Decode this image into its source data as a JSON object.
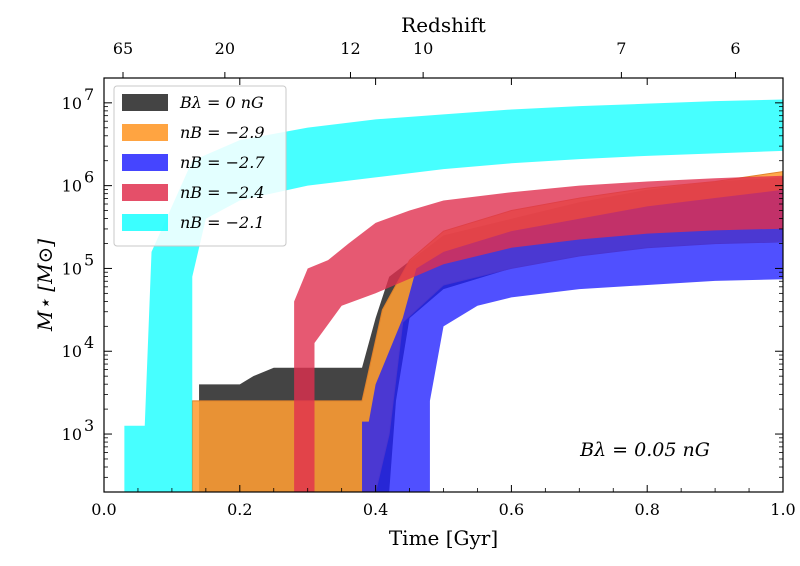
{
  "chart_data": {
    "type": "area",
    "title": "",
    "xlabel": "Time [Gyr]",
    "ylabel": "M⋆ [M⊙]",
    "top_axis_label": "Redshift",
    "xlim": [
      0.0,
      1.0
    ],
    "ylim_log10": [
      2.3,
      7.3
    ],
    "x_ticks": [
      "0.0",
      "0.2",
      "0.4",
      "0.6",
      "0.8",
      "1.0"
    ],
    "x_tick_values": [
      0.0,
      0.2,
      0.4,
      0.6,
      0.8,
      1.0
    ],
    "y_ticks": [
      "10",
      "10",
      "10",
      "10",
      "10"
    ],
    "y_tick_exponents": [
      "3",
      "4",
      "5",
      "6",
      "7"
    ],
    "y_tick_values_log10": [
      3,
      4,
      5,
      6,
      7
    ],
    "redshift_ticks": [
      "65",
      "20",
      "12",
      "10",
      "7",
      "6"
    ],
    "redshift_tick_times": [
      0.028,
      0.178,
      0.363,
      0.47,
      0.762,
      0.93
    ],
    "annotation": "Bλ = 0.05 nG",
    "legend_position": "top-left",
    "series": [
      {
        "name": "Bλ = 0 nG",
        "color": "#444444",
        "opacity": 1.0,
        "lower": [
          [
            0.14,
            2.3
          ],
          [
            0.42,
            2.3
          ],
          [
            0.43,
            3.4
          ],
          [
            0.45,
            4.4
          ],
          [
            0.5,
            4.75
          ],
          [
            0.6,
            5.0
          ],
          [
            0.7,
            5.15
          ],
          [
            0.8,
            5.25
          ],
          [
            0.9,
            5.3
          ],
          [
            1.0,
            5.33
          ]
        ],
        "upper": [
          [
            0.14,
            3.6
          ],
          [
            0.2,
            3.6
          ],
          [
            0.22,
            3.7
          ],
          [
            0.25,
            3.8
          ],
          [
            0.3,
            3.8
          ],
          [
            0.38,
            3.8
          ],
          [
            0.4,
            4.4
          ],
          [
            0.42,
            4.9
          ],
          [
            0.5,
            5.4
          ],
          [
            0.6,
            5.6
          ],
          [
            0.7,
            5.8
          ],
          [
            0.8,
            5.95
          ],
          [
            0.9,
            6.05
          ],
          [
            1.0,
            6.1
          ]
        ]
      },
      {
        "name": "nB = −2.9",
        "color": "#ff9d33",
        "opacity": 0.88,
        "lower": [
          [
            0.13,
            2.3
          ],
          [
            0.4,
            2.3
          ],
          [
            0.42,
            3.0
          ],
          [
            0.44,
            4.35
          ],
          [
            0.5,
            4.8
          ],
          [
            0.6,
            5.0
          ],
          [
            0.7,
            5.15
          ],
          [
            0.8,
            5.25
          ],
          [
            0.9,
            5.3
          ],
          [
            1.0,
            5.32
          ]
        ],
        "upper": [
          [
            0.13,
            3.4
          ],
          [
            0.2,
            3.4
          ],
          [
            0.3,
            3.4
          ],
          [
            0.38,
            3.4
          ],
          [
            0.41,
            4.5
          ],
          [
            0.45,
            5.1
          ],
          [
            0.5,
            5.45
          ],
          [
            0.6,
            5.7
          ],
          [
            0.7,
            5.85
          ],
          [
            0.8,
            5.97
          ],
          [
            0.9,
            6.05
          ],
          [
            1.0,
            6.17
          ]
        ]
      },
      {
        "name": "nB = −2.7",
        "color": "#1f1fff",
        "opacity": 0.78,
        "lower": [
          [
            0.38,
            2.3
          ],
          [
            0.48,
            2.3
          ],
          [
            0.48,
            3.4
          ],
          [
            0.5,
            4.3
          ],
          [
            0.55,
            4.55
          ],
          [
            0.6,
            4.65
          ],
          [
            0.7,
            4.75
          ],
          [
            0.8,
            4.8
          ],
          [
            0.9,
            4.85
          ],
          [
            1.0,
            4.87
          ]
        ],
        "upper": [
          [
            0.38,
            3.15
          ],
          [
            0.39,
            3.15
          ],
          [
            0.4,
            3.6
          ],
          [
            0.44,
            4.4
          ],
          [
            0.46,
            5.0
          ],
          [
            0.5,
            5.2
          ],
          [
            0.6,
            5.45
          ],
          [
            0.7,
            5.6
          ],
          [
            0.8,
            5.75
          ],
          [
            0.9,
            5.85
          ],
          [
            1.0,
            5.95
          ]
        ]
      },
      {
        "name": "nB = −2.4",
        "color": "#e0304f",
        "opacity": 0.8,
        "lower": [
          [
            0.28,
            2.3
          ],
          [
            0.31,
            2.3
          ],
          [
            0.31,
            4.1
          ],
          [
            0.35,
            4.55
          ],
          [
            0.4,
            4.7
          ],
          [
            0.5,
            5.05
          ],
          [
            0.6,
            5.25
          ],
          [
            0.7,
            5.35
          ],
          [
            0.8,
            5.42
          ],
          [
            0.9,
            5.46
          ],
          [
            1.0,
            5.48
          ]
        ],
        "upper": [
          [
            0.28,
            4.6
          ],
          [
            0.3,
            5.0
          ],
          [
            0.33,
            5.1
          ],
          [
            0.36,
            5.3
          ],
          [
            0.4,
            5.55
          ],
          [
            0.45,
            5.7
          ],
          [
            0.5,
            5.82
          ],
          [
            0.6,
            5.92
          ],
          [
            0.7,
            6.0
          ],
          [
            0.8,
            6.05
          ],
          [
            0.9,
            6.09
          ],
          [
            1.0,
            6.12
          ]
        ]
      },
      {
        "name": "nB = −2.1",
        "color": "#00ffff",
        "opacity": 0.72,
        "lower": [
          [
            0.03,
            2.3
          ],
          [
            0.13,
            2.3
          ],
          [
            0.13,
            4.9
          ],
          [
            0.15,
            5.6
          ],
          [
            0.2,
            5.82
          ],
          [
            0.3,
            6.0
          ],
          [
            0.4,
            6.1
          ],
          [
            0.5,
            6.2
          ],
          [
            0.6,
            6.27
          ],
          [
            0.7,
            6.32
          ],
          [
            0.8,
            6.36
          ],
          [
            0.9,
            6.39
          ],
          [
            1.0,
            6.42
          ]
        ],
        "upper": [
          [
            0.03,
            3.1
          ],
          [
            0.06,
            3.1
          ],
          [
            0.07,
            5.2
          ],
          [
            0.1,
            5.75
          ],
          [
            0.13,
            6.3
          ],
          [
            0.2,
            6.55
          ],
          [
            0.3,
            6.7
          ],
          [
            0.4,
            6.8
          ],
          [
            0.5,
            6.86
          ],
          [
            0.6,
            6.92
          ],
          [
            0.7,
            6.96
          ],
          [
            0.8,
            6.99
          ],
          [
            0.9,
            7.02
          ],
          [
            1.0,
            7.04
          ]
        ]
      }
    ]
  }
}
